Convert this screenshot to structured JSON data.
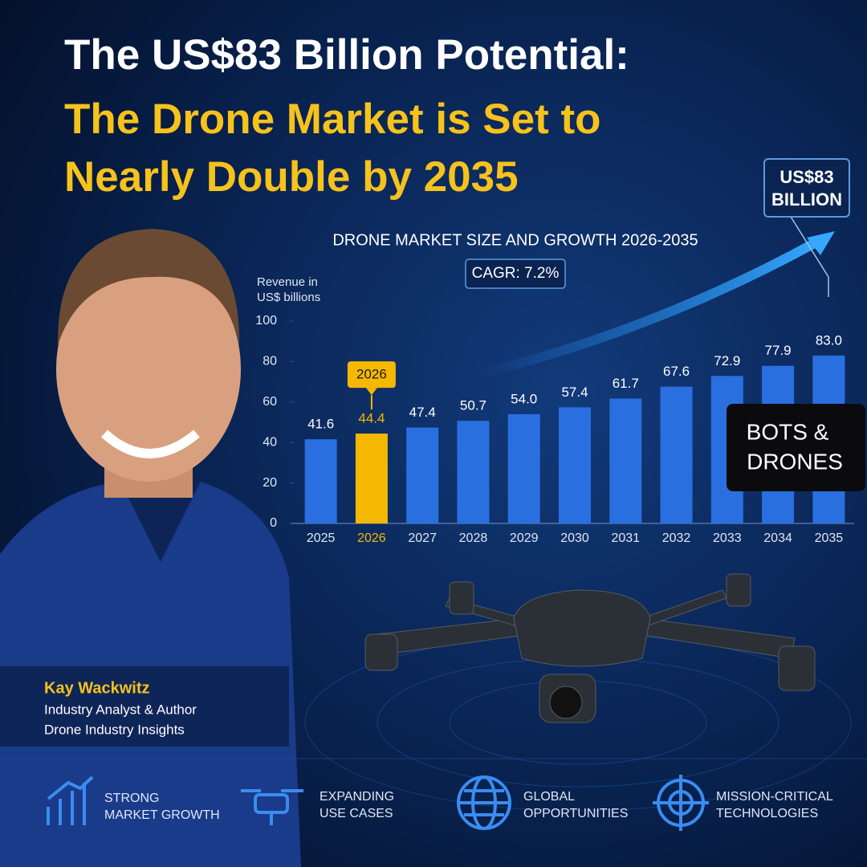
{
  "header": {
    "line1": "The US$83 Billion Potential:",
    "line2": "The Drone Market is Set to",
    "line3": "Nearly Double by 2035"
  },
  "chart_data": {
    "type": "bar",
    "title": "DRONE MARKET SIZE AND GROWTH 2026-2035",
    "y_label": [
      "Revenue in",
      "US$ billions"
    ],
    "annotation": "CAGR: 7.2%",
    "callout": [
      "US$83",
      "BILLION"
    ],
    "highlight_label": "2026",
    "categories": [
      "2025",
      "2026",
      "2027",
      "2028",
      "2029",
      "2030",
      "2031",
      "2032",
      "2033",
      "2034",
      "2035"
    ],
    "values": [
      41.6,
      44.4,
      47.4,
      50.7,
      54.0,
      57.4,
      61.7,
      67.6,
      72.9,
      77.9,
      83.0
    ],
    "value_labels": [
      "41.6",
      "44.4",
      "47.4",
      "50.7",
      "54.0",
      "57.4",
      "61.7",
      "67.6",
      "72.9",
      "77.9",
      "83.0"
    ],
    "color": "#2a6fe0",
    "highlight_color": "#f5b800",
    "ylim": [
      0,
      100
    ],
    "yticks": [
      0,
      20,
      40,
      60,
      80,
      100
    ],
    "grid": false
  },
  "badge": [
    "BOTS &",
    "DRONES"
  ],
  "person": {
    "name": "Kay Wackwitz",
    "role": "Industry Analyst & Author",
    "company": "Drone Industry Insights"
  },
  "features": [
    [
      "STRONG",
      "MARKET GROWTH"
    ],
    [
      "EXPANDING",
      "USE CASES"
    ],
    [
      "GLOBAL",
      "OPPORTUNITIES"
    ],
    [
      "MISSION-CRITICAL",
      "TECHNOLOGIES"
    ]
  ]
}
